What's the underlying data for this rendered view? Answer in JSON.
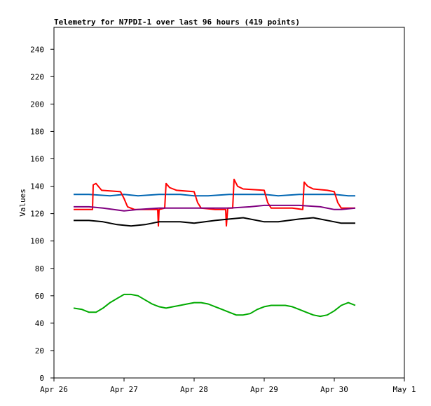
{
  "chart_data": {
    "type": "line",
    "title": "Telemetry for N7PDI-1 over last 96 hours (419 points)",
    "ylabel": "Values",
    "xlabel": "",
    "ylim": [
      0,
      256
    ],
    "yticks": [
      0,
      20,
      40,
      60,
      80,
      100,
      120,
      140,
      160,
      180,
      200,
      220,
      240
    ],
    "xlim": [
      0,
      5
    ],
    "xticks": [
      {
        "value": 0,
        "label": "Apr 26"
      },
      {
        "value": 1,
        "label": "Apr 27"
      },
      {
        "value": 2,
        "label": "Apr 28"
      },
      {
        "value": 3,
        "label": "Apr 29"
      },
      {
        "value": 4,
        "label": "Apr 30"
      },
      {
        "value": 5,
        "label": "May 1"
      }
    ],
    "grid": false,
    "series": [
      {
        "color": "#0066b3",
        "points": [
          [
            0.28,
            134
          ],
          [
            0.5,
            134
          ],
          [
            0.8,
            133
          ],
          [
            1.0,
            134
          ],
          [
            1.2,
            133
          ],
          [
            1.5,
            134
          ],
          [
            1.8,
            134
          ],
          [
            2.0,
            133
          ],
          [
            2.2,
            133
          ],
          [
            2.5,
            134
          ],
          [
            2.8,
            134
          ],
          [
            3.0,
            134
          ],
          [
            3.2,
            133
          ],
          [
            3.5,
            134
          ],
          [
            3.8,
            134
          ],
          [
            4.0,
            134
          ],
          [
            4.2,
            133
          ],
          [
            4.3,
            133
          ]
        ]
      },
      {
        "color": "#ff0000",
        "points": [
          [
            0.28,
            123
          ],
          [
            0.45,
            123
          ],
          [
            0.55,
            123
          ],
          [
            0.56,
            141
          ],
          [
            0.6,
            142
          ],
          [
            0.68,
            137
          ],
          [
            0.95,
            136
          ],
          [
            1.0,
            131
          ],
          [
            1.05,
            125
          ],
          [
            1.15,
            123
          ],
          [
            1.4,
            123
          ],
          [
            1.48,
            123
          ],
          [
            1.49,
            111
          ],
          [
            1.5,
            123
          ],
          [
            1.58,
            124
          ],
          [
            1.6,
            142
          ],
          [
            1.65,
            139
          ],
          [
            1.75,
            137
          ],
          [
            2.0,
            136
          ],
          [
            2.05,
            128
          ],
          [
            2.1,
            124
          ],
          [
            2.3,
            123
          ],
          [
            2.45,
            123
          ],
          [
            2.46,
            111
          ],
          [
            2.48,
            124
          ],
          [
            2.55,
            124
          ],
          [
            2.57,
            145
          ],
          [
            2.62,
            140
          ],
          [
            2.7,
            138
          ],
          [
            3.0,
            137
          ],
          [
            3.05,
            128
          ],
          [
            3.1,
            124
          ],
          [
            3.4,
            124
          ],
          [
            3.55,
            123
          ],
          [
            3.57,
            143
          ],
          [
            3.62,
            140
          ],
          [
            3.7,
            138
          ],
          [
            3.9,
            137
          ],
          [
            4.0,
            136
          ],
          [
            4.05,
            128
          ],
          [
            4.1,
            124
          ],
          [
            4.2,
            124
          ],
          [
            4.3,
            124
          ]
        ]
      },
      {
        "color": "#800080",
        "points": [
          [
            0.28,
            125
          ],
          [
            0.5,
            125
          ],
          [
            0.7,
            124
          ],
          [
            1.0,
            122
          ],
          [
            1.2,
            123
          ],
          [
            1.5,
            124
          ],
          [
            2.0,
            124
          ],
          [
            2.5,
            124
          ],
          [
            2.8,
            125
          ],
          [
            3.0,
            126
          ],
          [
            3.5,
            126
          ],
          [
            3.8,
            125
          ],
          [
            4.0,
            123
          ],
          [
            4.1,
            123
          ],
          [
            4.3,
            124
          ]
        ]
      },
      {
        "color": "#000000",
        "points": [
          [
            0.28,
            115
          ],
          [
            0.5,
            115
          ],
          [
            0.7,
            114
          ],
          [
            0.9,
            112
          ],
          [
            1.1,
            111
          ],
          [
            1.3,
            112
          ],
          [
            1.5,
            114
          ],
          [
            1.8,
            114
          ],
          [
            2.0,
            113
          ],
          [
            2.3,
            115
          ],
          [
            2.5,
            116
          ],
          [
            2.7,
            117
          ],
          [
            3.0,
            114
          ],
          [
            3.2,
            114
          ],
          [
            3.5,
            116
          ],
          [
            3.7,
            117
          ],
          [
            4.0,
            114
          ],
          [
            4.1,
            113
          ],
          [
            4.3,
            113
          ]
        ]
      },
      {
        "color": "#00aa00",
        "points": [
          [
            0.28,
            51
          ],
          [
            0.4,
            50
          ],
          [
            0.5,
            48
          ],
          [
            0.6,
            48
          ],
          [
            0.7,
            51
          ],
          [
            0.8,
            55
          ],
          [
            0.9,
            58
          ],
          [
            1.0,
            61
          ],
          [
            1.1,
            61
          ],
          [
            1.2,
            60
          ],
          [
            1.3,
            57
          ],
          [
            1.4,
            54
          ],
          [
            1.5,
            52
          ],
          [
            1.6,
            51
          ],
          [
            1.7,
            52
          ],
          [
            1.8,
            53
          ],
          [
            1.9,
            54
          ],
          [
            2.0,
            55
          ],
          [
            2.1,
            55
          ],
          [
            2.2,
            54
          ],
          [
            2.3,
            52
          ],
          [
            2.4,
            50
          ],
          [
            2.5,
            48
          ],
          [
            2.6,
            46
          ],
          [
            2.7,
            46
          ],
          [
            2.8,
            47
          ],
          [
            2.9,
            50
          ],
          [
            3.0,
            52
          ],
          [
            3.1,
            53
          ],
          [
            3.2,
            53
          ],
          [
            3.3,
            53
          ],
          [
            3.4,
            52
          ],
          [
            3.5,
            50
          ],
          [
            3.6,
            48
          ],
          [
            3.7,
            46
          ],
          [
            3.8,
            45
          ],
          [
            3.9,
            46
          ],
          [
            4.0,
            49
          ],
          [
            4.1,
            53
          ],
          [
            4.2,
            55
          ],
          [
            4.3,
            53
          ]
        ]
      }
    ]
  }
}
